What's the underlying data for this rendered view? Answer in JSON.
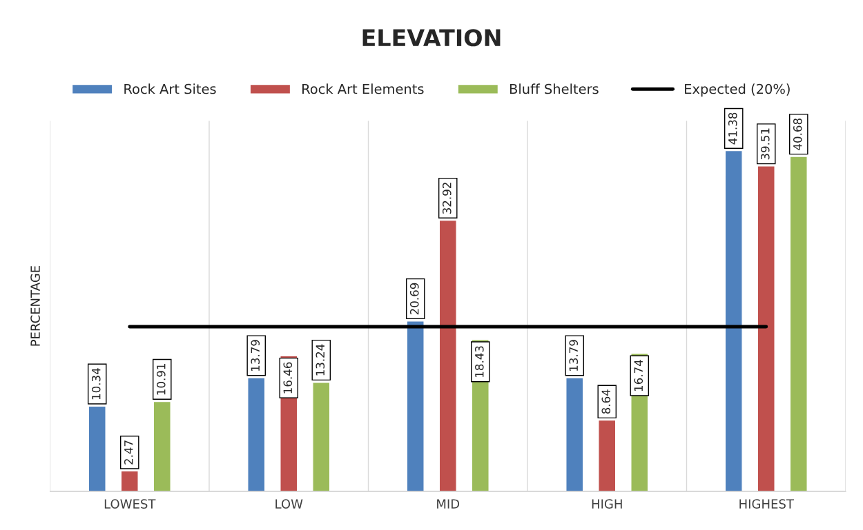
{
  "chart_data": {
    "type": "bar",
    "title": "ELEVATION",
    "ylabel": "PERCENTAGE",
    "categories": [
      "LOWEST",
      "LOW",
      "MID",
      "HIGH",
      "HIGHEST"
    ],
    "series": [
      {
        "name": "Rock Art Sites",
        "color": "#4f81bd",
        "values": [
          10.34,
          13.79,
          20.69,
          13.79,
          41.38
        ],
        "value_labels": [
          "10.34",
          "13.79",
          "20.69",
          "13.79",
          "41.38"
        ]
      },
      {
        "name": "Rock Art Elements",
        "color": "#c0504d",
        "values": [
          2.47,
          16.46,
          32.92,
          8.64,
          39.51
        ],
        "value_labels": [
          "2.47",
          "16.46",
          "32.92",
          "8.64",
          "39.51"
        ]
      },
      {
        "name": "Bluff Shelters",
        "color": "#9bbb59",
        "values": [
          10.91,
          13.24,
          18.43,
          16.74,
          40.68
        ],
        "value_labels": [
          "10.91",
          "13.24",
          "18.43",
          "16.74",
          "40.68"
        ]
      },
      {
        "name": "Expected (20%)",
        "type": "line",
        "color": "#000000",
        "values": [
          20,
          20,
          20,
          20,
          20
        ]
      }
    ],
    "ylim": [
      0,
      45
    ],
    "tick_labels": "x",
    "grid": "x",
    "legend": "top"
  }
}
